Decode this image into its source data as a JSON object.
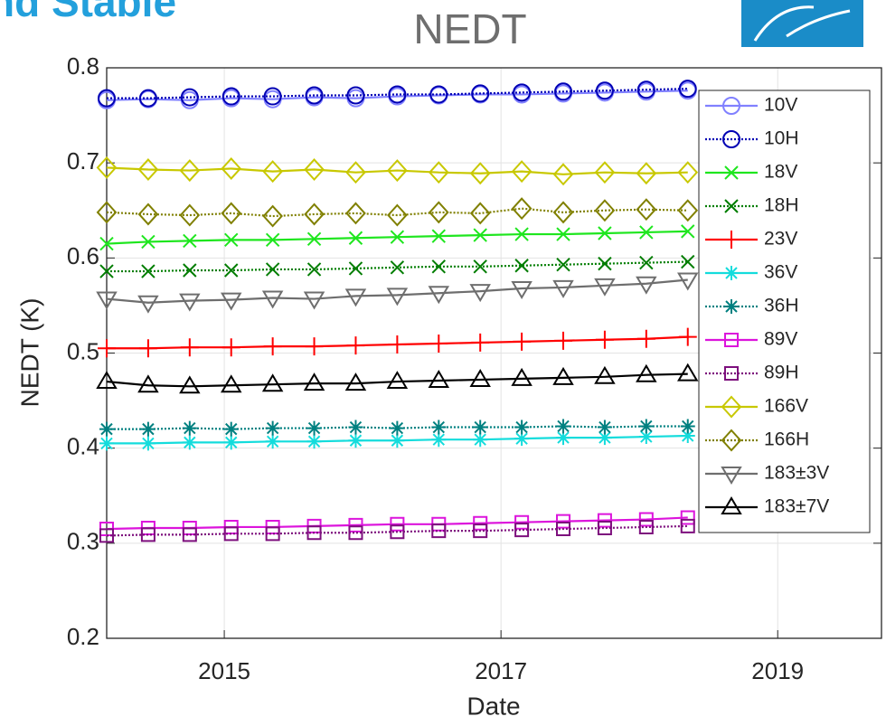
{
  "slide_header": "nd Stable",
  "chart_data": {
    "type": "line",
    "title": "NEDT",
    "xlabel": "Date",
    "ylabel": "NEDT (K)",
    "xlim": [
      2014.15,
      2019.75
    ],
    "xticks": [
      2015,
      2017,
      2019
    ],
    "ylim": [
      0.2,
      0.8
    ],
    "yticks": [
      0.2,
      0.3,
      0.4,
      0.5,
      0.6,
      0.7,
      0.8
    ],
    "grid": true,
    "legend": "northeast",
    "x": [
      2014.15,
      2014.45,
      2014.75,
      2015.05,
      2015.35,
      2015.65,
      2015.95,
      2016.25,
      2016.55,
      2016.85,
      2017.15,
      2017.45,
      2017.75,
      2018.05,
      2018.35
    ],
    "series": [
      {
        "name": "10V",
        "color": "#8080ff",
        "marker": "circle",
        "dash": false,
        "values": [
          0.766,
          0.767,
          0.766,
          0.768,
          0.767,
          0.769,
          0.768,
          0.77,
          0.771,
          0.772,
          0.772,
          0.773,
          0.774,
          0.775,
          0.776
        ]
      },
      {
        "name": "10H",
        "color": "#0000b4",
        "marker": "circle",
        "dash": true,
        "values": [
          0.768,
          0.768,
          0.769,
          0.77,
          0.77,
          0.771,
          0.771,
          0.772,
          0.772,
          0.773,
          0.774,
          0.775,
          0.776,
          0.777,
          0.778
        ]
      },
      {
        "name": "18V",
        "color": "#1ee61e",
        "marker": "x",
        "dash": false,
        "values": [
          0.615,
          0.617,
          0.618,
          0.619,
          0.619,
          0.62,
          0.621,
          0.622,
          0.623,
          0.624,
          0.625,
          0.625,
          0.626,
          0.627,
          0.628
        ]
      },
      {
        "name": "18H",
        "color": "#007d00",
        "marker": "x",
        "dash": true,
        "values": [
          0.586,
          0.586,
          0.587,
          0.587,
          0.588,
          0.588,
          0.589,
          0.59,
          0.591,
          0.591,
          0.592,
          0.593,
          0.594,
          0.595,
          0.596
        ]
      },
      {
        "name": "23V",
        "color": "#ff0000",
        "marker": "plus",
        "dash": false,
        "values": [
          0.505,
          0.505,
          0.506,
          0.506,
          0.507,
          0.507,
          0.508,
          0.509,
          0.51,
          0.511,
          0.512,
          0.513,
          0.514,
          0.515,
          0.517
        ]
      },
      {
        "name": "36V",
        "color": "#14dcdc",
        "marker": "star",
        "dash": false,
        "values": [
          0.405,
          0.405,
          0.406,
          0.406,
          0.407,
          0.407,
          0.408,
          0.408,
          0.409,
          0.409,
          0.41,
          0.411,
          0.411,
          0.412,
          0.413
        ]
      },
      {
        "name": "36H",
        "color": "#008080",
        "marker": "star",
        "dash": true,
        "values": [
          0.42,
          0.42,
          0.421,
          0.42,
          0.421,
          0.421,
          0.422,
          0.421,
          0.422,
          0.422,
          0.422,
          0.423,
          0.422,
          0.423,
          0.423
        ]
      },
      {
        "name": "89V",
        "color": "#dc14dc",
        "marker": "square",
        "dash": false,
        "values": [
          0.315,
          0.316,
          0.316,
          0.317,
          0.317,
          0.318,
          0.319,
          0.32,
          0.32,
          0.321,
          0.322,
          0.323,
          0.324,
          0.325,
          0.327
        ]
      },
      {
        "name": "89H",
        "color": "#7d0f7d",
        "marker": "square",
        "dash": true,
        "values": [
          0.308,
          0.309,
          0.309,
          0.31,
          0.31,
          0.311,
          0.311,
          0.312,
          0.313,
          0.313,
          0.314,
          0.315,
          0.316,
          0.317,
          0.318
        ]
      },
      {
        "name": "166V",
        "color": "#c8c800",
        "marker": "diamond",
        "dash": false,
        "values": [
          0.695,
          0.693,
          0.692,
          0.694,
          0.691,
          0.693,
          0.69,
          0.692,
          0.69,
          0.689,
          0.691,
          0.688,
          0.69,
          0.689,
          0.69
        ]
      },
      {
        "name": "166H",
        "color": "#808000",
        "marker": "diamond",
        "dash": true,
        "values": [
          0.648,
          0.646,
          0.645,
          0.647,
          0.644,
          0.646,
          0.647,
          0.645,
          0.648,
          0.647,
          0.652,
          0.648,
          0.65,
          0.651,
          0.65
        ]
      },
      {
        "name": "183±3V",
        "color": "#6e6e6e",
        "marker": "triangle-down",
        "dash": false,
        "values": [
          0.557,
          0.553,
          0.555,
          0.556,
          0.558,
          0.557,
          0.56,
          0.561,
          0.563,
          0.565,
          0.568,
          0.569,
          0.571,
          0.573,
          0.577
        ]
      },
      {
        "name": "183±7V",
        "color": "#000000",
        "marker": "triangle-up",
        "dash": false,
        "values": [
          0.47,
          0.466,
          0.465,
          0.466,
          0.467,
          0.468,
          0.468,
          0.47,
          0.471,
          0.472,
          0.473,
          0.474,
          0.475,
          0.477,
          0.478
        ]
      }
    ]
  }
}
